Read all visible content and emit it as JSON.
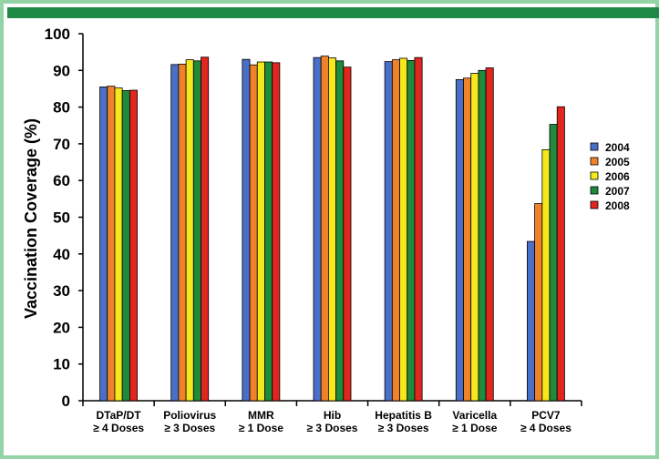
{
  "chart_data": {
    "type": "bar",
    "title": "",
    "xlabel": "",
    "ylabel": "Vaccination Coverage (%)",
    "ylim": [
      0,
      100
    ],
    "yticks": [
      "0",
      "10",
      "20",
      "30",
      "40",
      "50",
      "60",
      "70",
      "80",
      "90",
      "100"
    ],
    "categories": [
      [
        "DTaP/DT",
        "≥ 4 Doses"
      ],
      [
        "Poliovirus",
        "≥ 3 Doses"
      ],
      [
        "MMR",
        "≥ 1 Dose"
      ],
      [
        "Hib",
        "≥ 3 Doses"
      ],
      [
        "Hepatitis B",
        "≥ 3 Doses"
      ],
      [
        "Varicella",
        "≥ 1 Dose"
      ],
      [
        "PCV7",
        "≥ 4 Doses"
      ]
    ],
    "series": [
      {
        "name": "2004",
        "color": "#4a6fc6",
        "values": [
          85.5,
          91.6,
          93.0,
          93.5,
          92.4,
          87.5,
          43.4
        ]
      },
      {
        "name": "2005",
        "color": "#f0832a",
        "values": [
          85.7,
          91.7,
          91.5,
          93.9,
          92.9,
          87.9,
          53.7
        ]
      },
      {
        "name": "2006",
        "color": "#f5e81c",
        "values": [
          85.2,
          92.9,
          92.3,
          93.4,
          93.3,
          89.2,
          68.4
        ]
      },
      {
        "name": "2007",
        "color": "#1f8a3c",
        "values": [
          84.5,
          92.6,
          92.3,
          92.6,
          92.7,
          90.0,
          75.3
        ]
      },
      {
        "name": "2008",
        "color": "#e0261f",
        "values": [
          84.6,
          93.6,
          92.1,
          90.9,
          93.5,
          90.7,
          80.1
        ]
      }
    ],
    "legend_position": "right",
    "grid": false
  }
}
